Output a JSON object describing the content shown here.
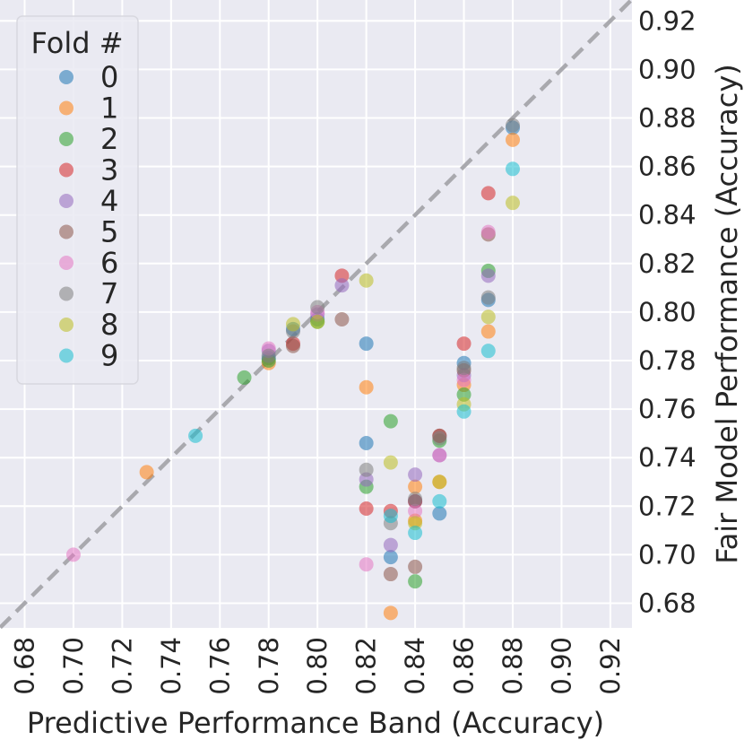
{
  "chart_data": {
    "type": "scatter",
    "xlabel": "Predictive Performance Band (Accuracy)",
    "ylabel": "Fair Model Performance (Accuracy)",
    "xlim": [
      0.67,
      0.935
    ],
    "ylim": [
      0.67,
      0.935
    ],
    "x_ticks": [
      "0.68",
      "0.70",
      "0.72",
      "0.74",
      "0.76",
      "0.78",
      "0.80",
      "0.82",
      "0.84",
      "0.86",
      "0.88",
      "0.90",
      "0.92"
    ],
    "y_ticks": [
      "0.68",
      "0.70",
      "0.72",
      "0.74",
      "0.76",
      "0.78",
      "0.80",
      "0.82",
      "0.84",
      "0.86",
      "0.88",
      "0.90",
      "0.92"
    ],
    "grid": true,
    "reference_line": "y = x (dashed)",
    "legend": {
      "title": "Fold #",
      "placement": "top-left"
    },
    "series": [
      {
        "name": "0",
        "color": "#1f77b4",
        "points": [
          [
            0.78,
            0.781
          ],
          [
            0.79,
            0.793
          ],
          [
            0.8,
            0.797
          ],
          [
            0.82,
            0.787
          ],
          [
            0.82,
            0.746
          ],
          [
            0.83,
            0.699
          ],
          [
            0.84,
            0.722
          ],
          [
            0.85,
            0.717
          ],
          [
            0.86,
            0.779
          ],
          [
            0.87,
            0.805
          ],
          [
            0.88,
            0.876
          ]
        ]
      },
      {
        "name": "1",
        "color": "#ff7f0e",
        "points": [
          [
            0.73,
            0.734
          ],
          [
            0.78,
            0.779
          ],
          [
            0.82,
            0.769
          ],
          [
            0.83,
            0.676
          ],
          [
            0.84,
            0.728
          ],
          [
            0.84,
            0.714
          ],
          [
            0.85,
            0.73
          ],
          [
            0.86,
            0.77
          ],
          [
            0.87,
            0.792
          ],
          [
            0.88,
            0.871
          ]
        ]
      },
      {
        "name": "2",
        "color": "#2ca02c",
        "points": [
          [
            0.77,
            0.773
          ],
          [
            0.78,
            0.78
          ],
          [
            0.8,
            0.796
          ],
          [
            0.82,
            0.728
          ],
          [
            0.83,
            0.755
          ],
          [
            0.84,
            0.689
          ],
          [
            0.85,
            0.747
          ],
          [
            0.86,
            0.766
          ],
          [
            0.87,
            0.817
          ]
        ]
      },
      {
        "name": "3",
        "color": "#d62728",
        "points": [
          [
            0.79,
            0.787
          ],
          [
            0.81,
            0.815
          ],
          [
            0.82,
            0.719
          ],
          [
            0.83,
            0.718
          ],
          [
            0.84,
            0.722
          ],
          [
            0.85,
            0.749
          ],
          [
            0.86,
            0.787
          ],
          [
            0.87,
            0.849
          ]
        ]
      },
      {
        "name": "4",
        "color": "#9467bd",
        "points": [
          [
            0.78,
            0.784
          ],
          [
            0.8,
            0.799
          ],
          [
            0.81,
            0.811
          ],
          [
            0.82,
            0.731
          ],
          [
            0.83,
            0.704
          ],
          [
            0.84,
            0.733
          ],
          [
            0.85,
            0.741
          ],
          [
            0.86,
            0.774
          ],
          [
            0.87,
            0.815
          ]
        ]
      },
      {
        "name": "5",
        "color": "#8c564b",
        "points": [
          [
            0.79,
            0.786
          ],
          [
            0.81,
            0.797
          ],
          [
            0.83,
            0.692
          ],
          [
            0.84,
            0.695
          ],
          [
            0.85,
            0.749
          ],
          [
            0.86,
            0.776
          ],
          [
            0.87,
            0.832
          ]
        ]
      },
      {
        "name": "6",
        "color": "#e377c2",
        "points": [
          [
            0.7,
            0.7
          ],
          [
            0.78,
            0.785
          ],
          [
            0.8,
            0.8
          ],
          [
            0.82,
            0.696
          ],
          [
            0.84,
            0.718
          ],
          [
            0.85,
            0.741
          ],
          [
            0.86,
            0.772
          ],
          [
            0.87,
            0.833
          ]
        ]
      },
      {
        "name": "7",
        "color": "#7f7f7f",
        "points": [
          [
            0.78,
            0.782
          ],
          [
            0.79,
            0.792
          ],
          [
            0.8,
            0.802
          ],
          [
            0.82,
            0.735
          ],
          [
            0.83,
            0.713
          ],
          [
            0.84,
            0.723
          ],
          [
            0.85,
            0.748
          ],
          [
            0.86,
            0.777
          ],
          [
            0.87,
            0.806
          ],
          [
            0.88,
            0.877
          ]
        ]
      },
      {
        "name": "8",
        "color": "#bcbd22",
        "points": [
          [
            0.79,
            0.795
          ],
          [
            0.8,
            0.796
          ],
          [
            0.82,
            0.813
          ],
          [
            0.83,
            0.738
          ],
          [
            0.84,
            0.713
          ],
          [
            0.85,
            0.73
          ],
          [
            0.86,
            0.762
          ],
          [
            0.87,
            0.798
          ],
          [
            0.88,
            0.845
          ]
        ]
      },
      {
        "name": "9",
        "color": "#17becf",
        "points": [
          [
            0.75,
            0.749
          ],
          [
            0.83,
            0.716
          ],
          [
            0.84,
            0.709
          ],
          [
            0.85,
            0.722
          ],
          [
            0.86,
            0.759
          ],
          [
            0.87,
            0.784
          ],
          [
            0.88,
            0.859
          ]
        ]
      }
    ]
  }
}
